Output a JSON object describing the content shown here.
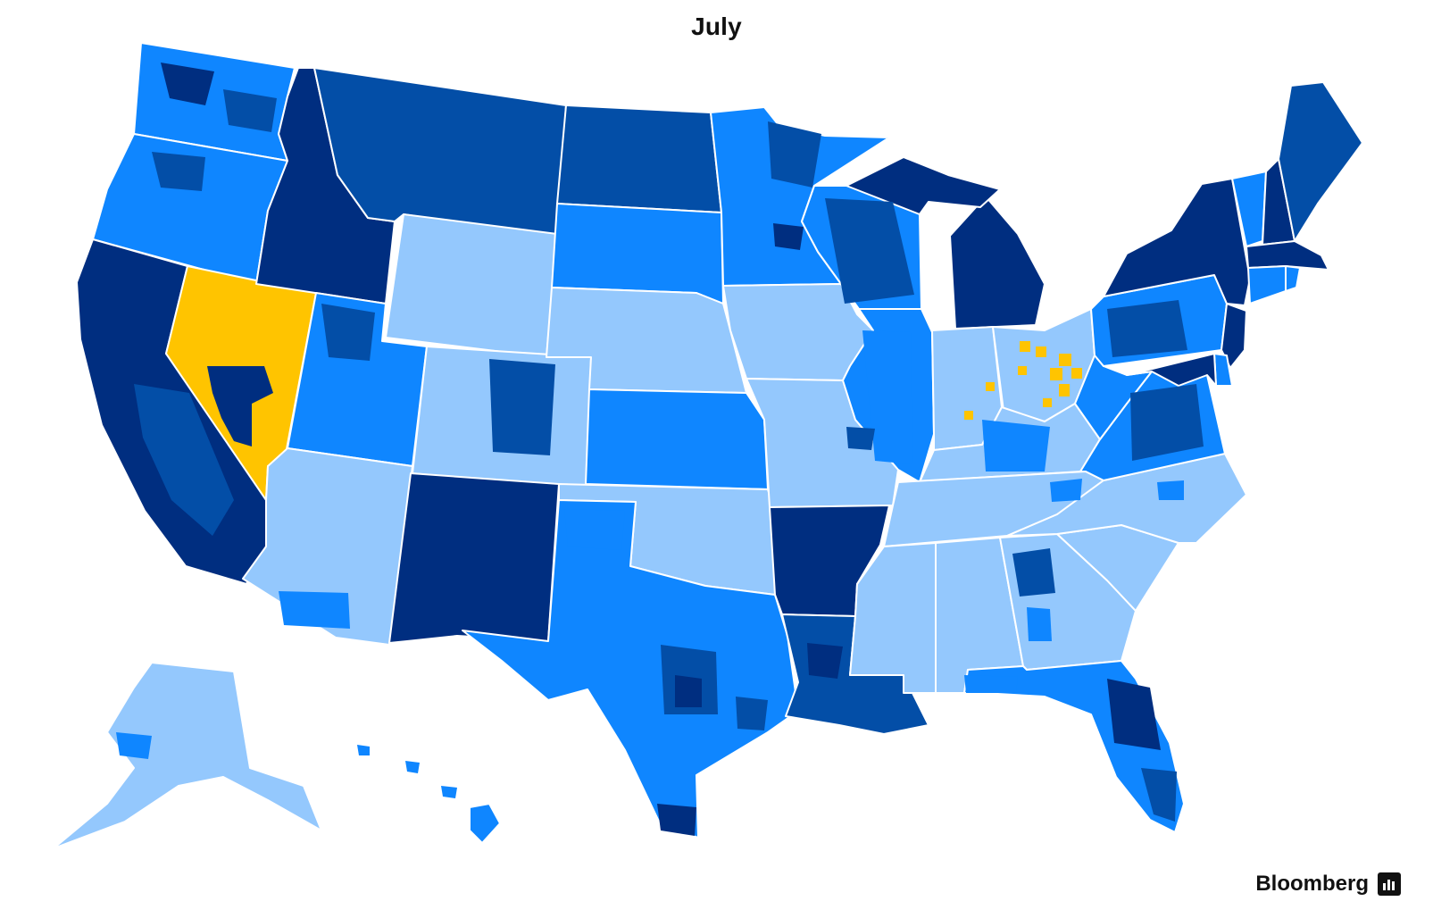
{
  "title": "July",
  "brand": {
    "name": "Bloomberg",
    "icon": "bloomberg-chart-icon"
  },
  "colors": {
    "lightest": "#94c8fd",
    "light": "#0f86ff",
    "medium": "#034ea7",
    "dark": "#002e80",
    "highlight": "#ffc400",
    "border": "#ffffff"
  },
  "states": [
    {
      "id": "WA",
      "shade": "light"
    },
    {
      "id": "OR",
      "shade": "light"
    },
    {
      "id": "CA",
      "shade": "dark"
    },
    {
      "id": "NV",
      "shade": "highlight"
    },
    {
      "id": "ID",
      "shade": "dark"
    },
    {
      "id": "MT",
      "shade": "medium"
    },
    {
      "id": "WY",
      "shade": "lightest"
    },
    {
      "id": "UT",
      "shade": "light"
    },
    {
      "id": "AZ",
      "shade": "lightest"
    },
    {
      "id": "CO",
      "shade": "lightest"
    },
    {
      "id": "NM",
      "shade": "dark"
    },
    {
      "id": "ND",
      "shade": "medium"
    },
    {
      "id": "SD",
      "shade": "light"
    },
    {
      "id": "NE",
      "shade": "lightest"
    },
    {
      "id": "KS",
      "shade": "light"
    },
    {
      "id": "OK",
      "shade": "lightest"
    },
    {
      "id": "TX",
      "shade": "light"
    },
    {
      "id": "MN",
      "shade": "light"
    },
    {
      "id": "IA",
      "shade": "lightest"
    },
    {
      "id": "MO",
      "shade": "lightest"
    },
    {
      "id": "AR",
      "shade": "dark"
    },
    {
      "id": "LA",
      "shade": "medium"
    },
    {
      "id": "WI",
      "shade": "light"
    },
    {
      "id": "IL",
      "shade": "light"
    },
    {
      "id": "MI",
      "shade": "dark"
    },
    {
      "id": "IN",
      "shade": "lightest"
    },
    {
      "id": "OH",
      "shade": "lightest"
    },
    {
      "id": "KY",
      "shade": "lightest"
    },
    {
      "id": "TN",
      "shade": "lightest"
    },
    {
      "id": "MS",
      "shade": "lightest"
    },
    {
      "id": "AL",
      "shade": "lightest"
    },
    {
      "id": "GA",
      "shade": "lightest"
    },
    {
      "id": "FL",
      "shade": "light"
    },
    {
      "id": "SC",
      "shade": "lightest"
    },
    {
      "id": "NC",
      "shade": "lightest"
    },
    {
      "id": "VA",
      "shade": "light"
    },
    {
      "id": "WV",
      "shade": "light"
    },
    {
      "id": "PA",
      "shade": "light"
    },
    {
      "id": "NY",
      "shade": "dark"
    },
    {
      "id": "VT",
      "shade": "light"
    },
    {
      "id": "NH",
      "shade": "dark"
    },
    {
      "id": "ME",
      "shade": "medium"
    },
    {
      "id": "MA",
      "shade": "dark"
    },
    {
      "id": "CT",
      "shade": "light"
    },
    {
      "id": "RI",
      "shade": "light"
    },
    {
      "id": "NJ",
      "shade": "dark"
    },
    {
      "id": "DE",
      "shade": "light"
    },
    {
      "id": "MD",
      "shade": "dark"
    },
    {
      "id": "AK",
      "shade": "lightest"
    },
    {
      "id": "HI",
      "shade": "light"
    }
  ]
}
